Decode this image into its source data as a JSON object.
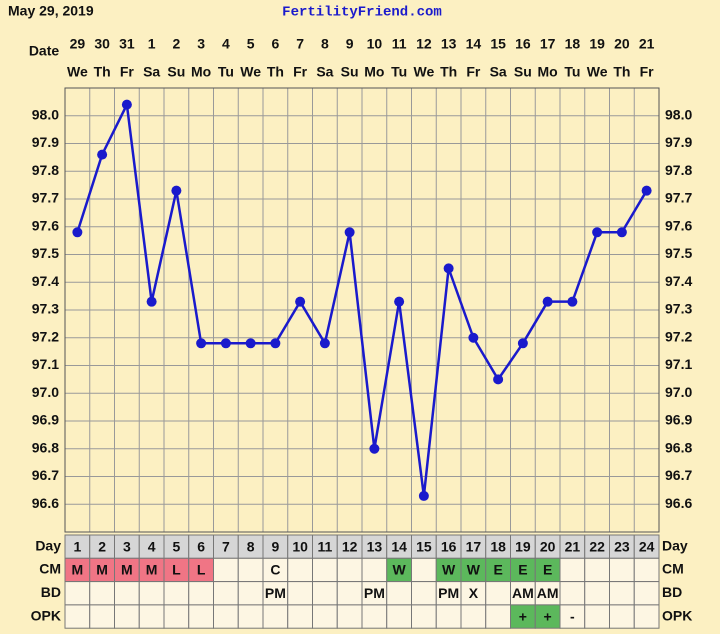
{
  "header": {
    "date": "May 29, 2019",
    "site": "FertilityFriend.com"
  },
  "chart_data": {
    "type": "line",
    "x_label": "Date",
    "categories": [
      "29",
      "30",
      "31",
      "1",
      "2",
      "3",
      "4",
      "5",
      "6",
      "7",
      "8",
      "9",
      "10",
      "11",
      "12",
      "13",
      "14",
      "15",
      "16",
      "17",
      "18",
      "19",
      "20",
      "21"
    ],
    "weekdays": [
      "We",
      "Th",
      "Fr",
      "Sa",
      "Su",
      "Mo",
      "Tu",
      "We",
      "Th",
      "Fr",
      "Sa",
      "Su",
      "Mo",
      "Tu",
      "We",
      "Th",
      "Fr",
      "Sa",
      "Su",
      "Mo",
      "Tu",
      "We",
      "Th",
      "Fr"
    ],
    "values": [
      97.58,
      97.86,
      98.04,
      97.33,
      97.73,
      97.18,
      97.18,
      97.18,
      97.18,
      97.33,
      97.18,
      97.58,
      96.8,
      97.33,
      96.63,
      97.45,
      97.2,
      97.05,
      97.18,
      97.33,
      97.33,
      97.58,
      97.58,
      97.73
    ],
    "color": "#1a1acc",
    "ylim": [
      96.5,
      98.1
    ],
    "yticks": [
      96.6,
      96.7,
      96.8,
      96.9,
      {
        "value": 97.0,
        "label": "97.0"
      },
      97.1,
      97.2,
      97.3,
      97.4,
      97.5,
      97.6,
      97.7,
      97.8,
      97.9,
      {
        "value": 98.0,
        "label": "98.0"
      }
    ],
    "grid": true
  },
  "table": {
    "rows": [
      {
        "label": "Day",
        "cells": [
          1,
          2,
          3,
          4,
          5,
          6,
          7,
          8,
          9,
          10,
          11,
          12,
          13,
          14,
          15,
          16,
          17,
          18,
          19,
          20,
          21,
          22,
          23,
          24
        ],
        "color": "#d6d6d6"
      },
      {
        "label": "CM",
        "cells": [
          "M",
          "M",
          "M",
          "M",
          "L",
          "L",
          null,
          null,
          "C",
          null,
          null,
          null,
          null,
          "W",
          null,
          "W",
          "W",
          "E",
          "E",
          "E",
          null,
          null,
          null,
          null
        ],
        "colors": [
          "#f07585",
          "#f07585",
          "#f07585",
          "#f07585",
          "#f07585",
          "#f07585",
          null,
          null,
          null,
          null,
          null,
          null,
          null,
          "#5cb85c",
          null,
          "#5cb85c",
          "#5cb85c",
          "#5cb85c",
          "#5cb85c",
          "#5cb85c",
          null,
          null,
          null,
          null
        ]
      },
      {
        "label": "BD",
        "cells": [
          null,
          null,
          null,
          null,
          null,
          null,
          null,
          null,
          "PM",
          null,
          null,
          null,
          "PM",
          null,
          null,
          "PM",
          "X",
          null,
          "AM",
          "AM",
          null,
          null,
          null,
          null
        ]
      },
      {
        "label": "OPK",
        "cells": [
          null,
          null,
          null,
          null,
          null,
          null,
          null,
          null,
          null,
          null,
          null,
          null,
          null,
          null,
          null,
          null,
          null,
          null,
          "+",
          "+",
          "-",
          null,
          null,
          null
        ],
        "colors": [
          null,
          null,
          null,
          null,
          null,
          null,
          null,
          null,
          null,
          null,
          null,
          null,
          null,
          null,
          null,
          null,
          null,
          null,
          "#5cb85c",
          "#5cb85c",
          null,
          null,
          null,
          null
        ]
      }
    ]
  }
}
